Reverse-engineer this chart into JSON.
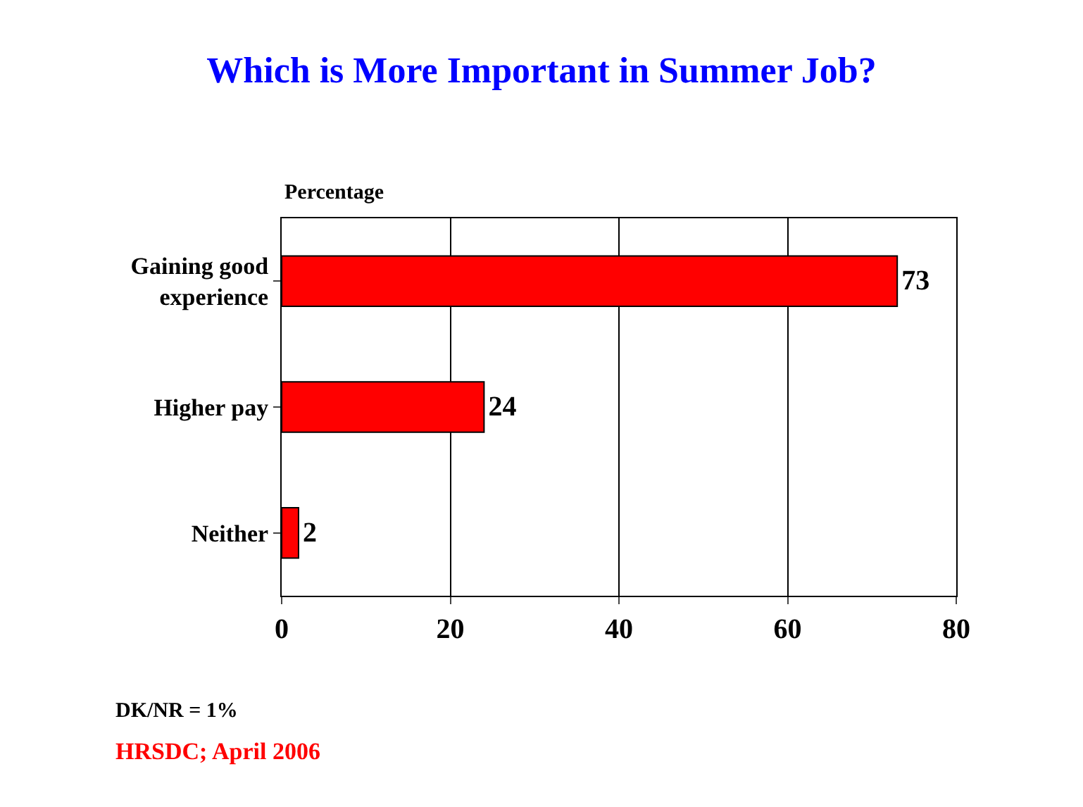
{
  "chart_data": {
    "type": "bar",
    "orientation": "horizontal",
    "title": "Which is More Important in Summer Job?",
    "xlabel": "Percentage",
    "categories": [
      "Gaining good\nexperience",
      "Higher pay",
      "Neither"
    ],
    "values": [
      73,
      24,
      2
    ],
    "color": "#ff0000",
    "data_labels": true,
    "xlim": [
      0,
      80
    ],
    "xticks": [
      0,
      20,
      40,
      60,
      80
    ],
    "grid": "x",
    "annotations": [
      "DK/NR = 1%",
      "HRSDC; April 2006"
    ]
  }
}
